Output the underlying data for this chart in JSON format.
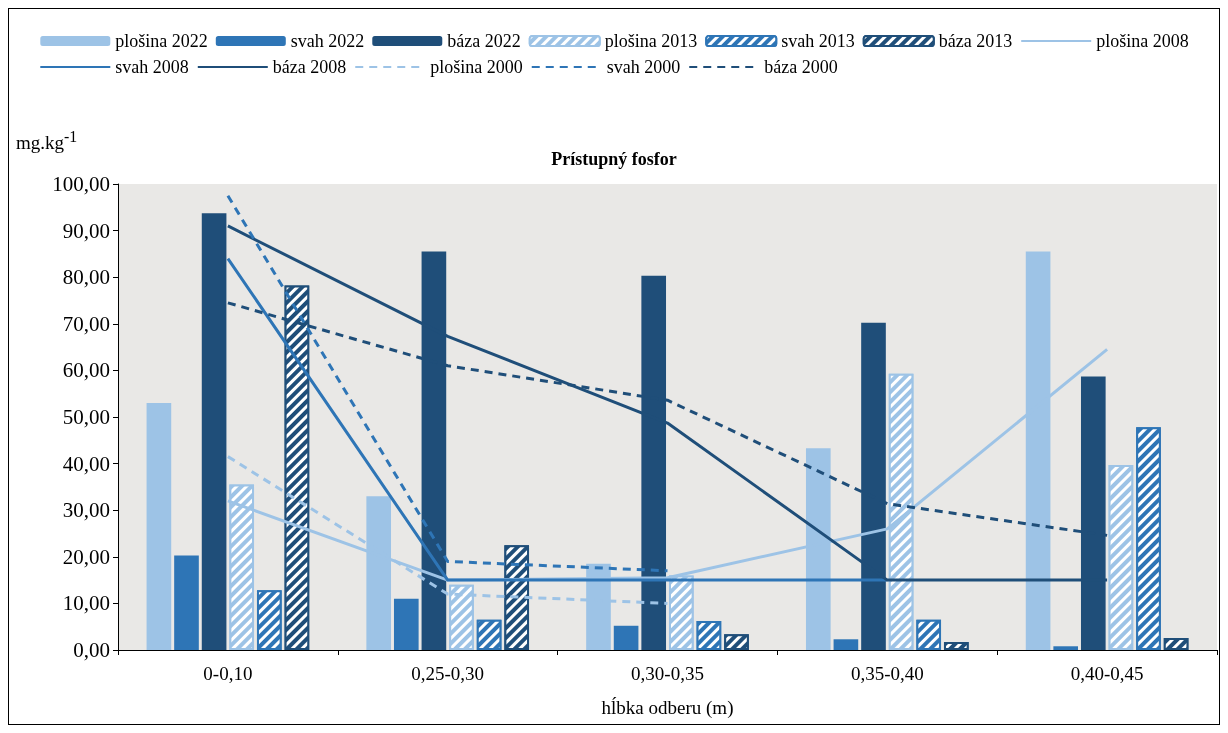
{
  "chart_data": {
    "type": "bar",
    "title": "Prístupný fosfor",
    "xlabel": "hĺbka odberu (m)",
    "ylabel": "mg.kg$^{-1}$",
    "categories": [
      "0-0,10",
      "0,25-0,30",
      "0,30-0,35",
      "0,35-0,40",
      "0,40-0,45"
    ],
    "series": [
      {
        "name": "plošina 2022",
        "color": "#9dc3e6",
        "values": [
          53,
          33,
          18.5,
          43.3,
          85.5
        ]
      },
      {
        "name": "svah 2022",
        "color": "#2e75b6",
        "values": [
          20.3,
          11,
          5.2,
          2.3,
          0.8
        ]
      },
      {
        "name": "báza 2022",
        "color": "#1f4e79",
        "values": [
          93.7,
          85.5,
          80.3,
          70.2,
          58.7
        ]
      },
      {
        "name": "plošina 2013",
        "color": "#9dc3e6",
        "values": [
          35.5,
          14,
          16,
          59.3,
          39.7
        ]
      },
      {
        "name": "svah 2013",
        "color": "#2e75b6",
        "values": [
          12.8,
          6.5,
          6.2,
          6.5,
          47.8
        ]
      },
      {
        "name": "báza 2013",
        "color": "#1f4e79",
        "values": [
          78.2,
          22.5,
          3.4,
          1.7,
          2.6
        ]
      },
      {
        "name": "plošina 2008",
        "type": "line",
        "line_style": "solid",
        "color": "#9dc3e6",
        "values": [
          32,
          15,
          15.5,
          26,
          64.5
        ]
      },
      {
        "name": "svah 2008",
        "type": "line",
        "line_style": "solid",
        "color": "#2e75b6",
        "values": [
          84,
          15,
          15,
          15,
          null
        ]
      },
      {
        "name": "báza 2008",
        "type": "line",
        "line_style": "solid",
        "color": "#1f4e79",
        "values": [
          91,
          67.3,
          48.7,
          15,
          15
        ]
      },
      {
        "name": "plošina 2000",
        "type": "line",
        "line_style": "dashed",
        "color": "#9dc3e6",
        "values": [
          41.5,
          12,
          10,
          null,
          null
        ]
      },
      {
        "name": "svah 2000",
        "type": "line",
        "line_style": "dashed",
        "color": "#2e75b6",
        "values": [
          97.5,
          19,
          17,
          null,
          null
        ]
      },
      {
        "name": "báza 2000",
        "type": "line",
        "line_style": "dashed",
        "color": "#1f4e79",
        "values": [
          74.5,
          61,
          53.6,
          31.4,
          24.6
        ]
      }
    ],
    "ylim": [
      0,
      100
    ],
    "yticks": [
      {
        "value": 0,
        "label": "0,00"
      },
      {
        "value": 10,
        "label": "10,00"
      },
      {
        "value": 20,
        "label": "20,00"
      },
      {
        "value": 30,
        "label": "30,00"
      },
      {
        "value": 40,
        "label": "40,00"
      },
      {
        "value": 50,
        "label": "50,00"
      },
      {
        "value": 60,
        "label": "60,00"
      },
      {
        "value": 70,
        "label": "70,00"
      },
      {
        "value": 80,
        "label": "80,00"
      },
      {
        "value": 90,
        "label": "90,00"
      },
      {
        "value": 100,
        "label": "100,00"
      }
    ],
    "grid": false,
    "legend": "top",
    "marker": "none"
  }
}
